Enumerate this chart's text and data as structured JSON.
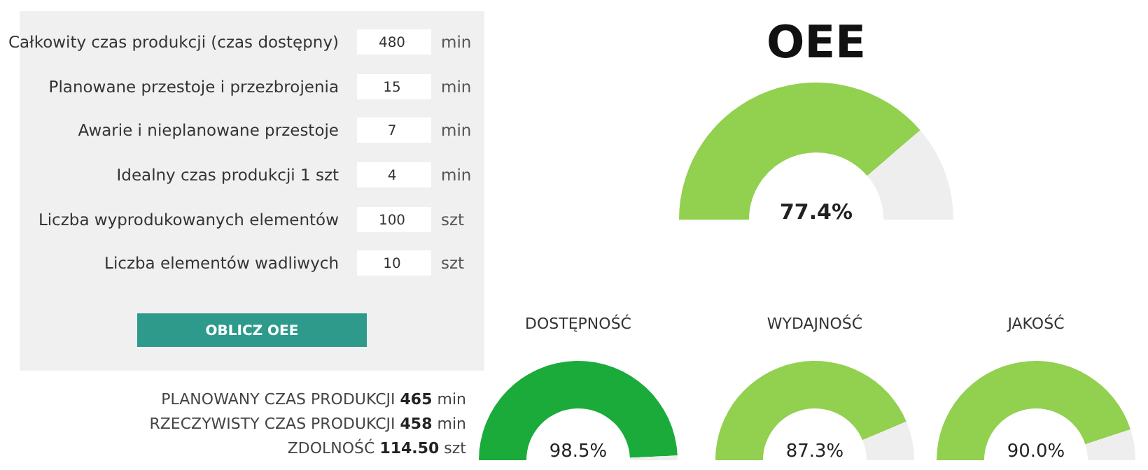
{
  "chart_data": [
    {
      "type": "other",
      "categories": [
        "Całkowity czas produkcji (czas dostępny)",
        "Planowane przestoje i przezbrojenia",
        "Awarie i nieplanowane przestoje",
        "Idealny czas produkcji 1 szt",
        "Liczba wyprodukowanych elementów",
        "Liczba elementów wadliwych"
      ],
      "values": [
        480,
        15,
        7,
        4,
        100,
        10
      ],
      "data_labels": true,
      "annotations": [
        "min",
        "min",
        "min",
        "min",
        "szt",
        "szt",
        "OBLICZ OEE",
        "PLANOWANY CZAS PRODUKCJI",
        "465",
        "min",
        "RZECZYWISTY CZAS PRODUKCJI",
        "458",
        "min",
        "ZDOLNOŚĆ",
        "114.50",
        "szt"
      ]
    },
    {
      "type": "donut",
      "title": "OEE",
      "categories": [
        null,
        null
      ],
      "values": [
        77.4,
        22.6
      ],
      "colors": [
        "#92d050",
        "#eeeeee"
      ],
      "value_labels": [
        "77.4%",
        null
      ]
    },
    {
      "type": "donut",
      "title": "DOSTĘPNOŚĆ",
      "categories": [
        null,
        null
      ],
      "values": [
        98.5,
        1.5
      ],
      "colors": [
        "#1aab3a",
        "#eeeeee"
      ],
      "value_labels": [
        "98.5%",
        null
      ]
    },
    {
      "type": "donut",
      "title": "WYDAJNOŚĆ",
      "categories": [
        null,
        null
      ],
      "values": [
        87.3,
        12.7
      ],
      "colors": [
        "#92d050",
        "#eeeeee"
      ],
      "value_labels": [
        "87.3%",
        null
      ]
    },
    {
      "type": "donut",
      "title": "JAKOŚĆ",
      "categories": [
        null,
        null
      ],
      "values": [
        90.0,
        10.0
      ],
      "colors": [
        "#92d050",
        "#eeeeee"
      ],
      "value_labels": [
        "90.0%",
        null
      ]
    }
  ]
}
